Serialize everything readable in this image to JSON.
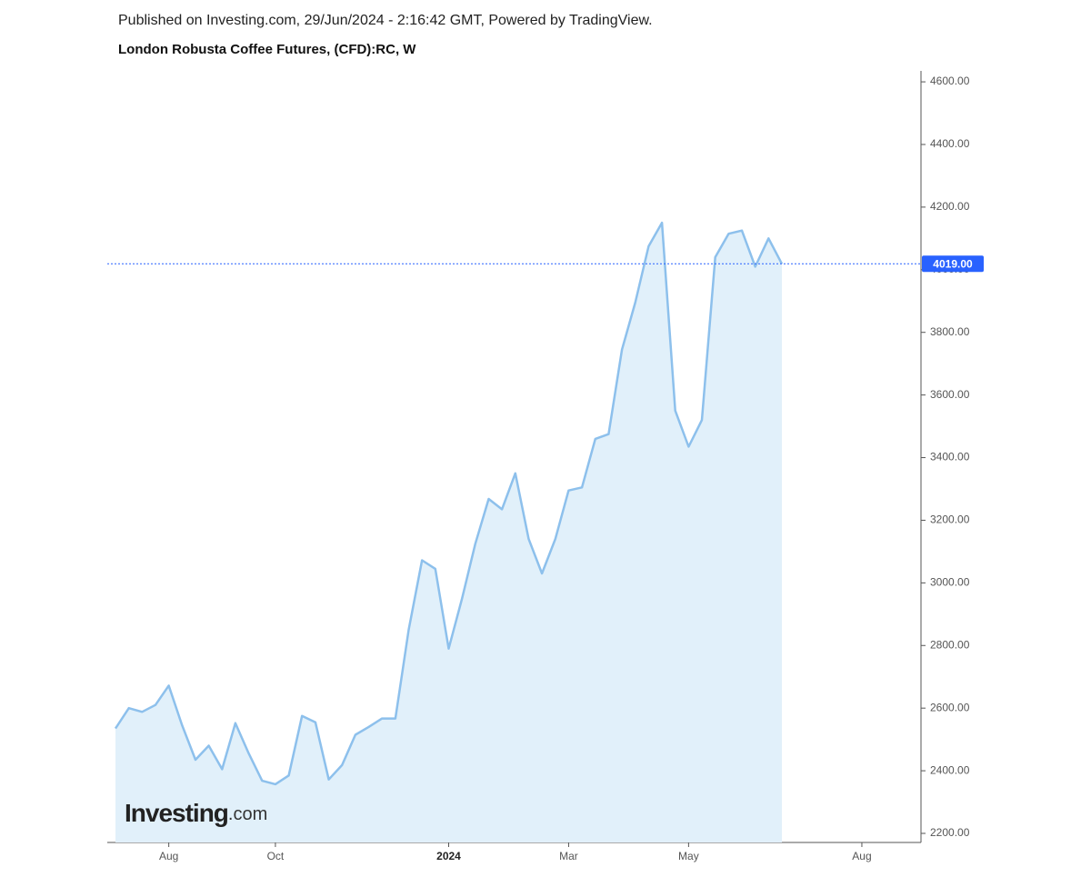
{
  "header": "Published on Investing.com, 29/Jun/2024 - 2:16:42 GMT, Powered by TradingView.",
  "chart_data": {
    "type": "area",
    "title": "London Robusta Coffee Futures, (CFD):RC, W",
    "categories": [
      null,
      null,
      null,
      null,
      "Aug",
      null,
      null,
      null,
      null,
      null,
      null,
      null,
      "Oct",
      null,
      null,
      null,
      null,
      null,
      null,
      null,
      null,
      null,
      null,
      null,
      null,
      "2024",
      null,
      null,
      null,
      null,
      null,
      null,
      null,
      null,
      "Mar",
      null,
      null,
      null,
      null,
      null,
      null,
      null,
      null,
      "May",
      null,
      null,
      null,
      null,
      null,
      null,
      null,
      null,
      null,
      null,
      null,
      null,
      "Aug",
      null,
      null,
      null,
      null
    ],
    "values": [
      2535,
      2600,
      2588,
      2610,
      2672,
      2545,
      2435,
      2480,
      2405,
      2552,
      2455,
      2368,
      2357,
      2385,
      2575,
      2555,
      2372,
      2418,
      2515,
      2540,
      2567,
      2567,
      2850,
      3072,
      3045,
      2790,
      2950,
      3125,
      3268,
      3235,
      3350,
      3140,
      3030,
      3140,
      3295,
      3305,
      3460,
      3475,
      3745,
      3895,
      4075,
      4150,
      3550,
      3435,
      3520,
      4040,
      4115,
      4125,
      4010,
      4100,
      4019,
      null,
      null,
      null,
      null,
      null,
      null,
      null,
      null,
      null,
      null
    ],
    "color": "#8dc0ec",
    "fill": "#e1f0fa",
    "ylim": [
      2171,
      4635
    ],
    "yticks": [
      {
        "value": 2200,
        "label": "2200.00"
      },
      {
        "value": 2400,
        "label": "2400.00"
      },
      {
        "value": 2600,
        "label": "2600.00"
      },
      {
        "value": 2800,
        "label": "2800.00"
      },
      {
        "value": 3000,
        "label": "3000.00"
      },
      {
        "value": 3200,
        "label": "3200.00"
      },
      {
        "value": 3400,
        "label": "3400.00"
      },
      {
        "value": 3600,
        "label": "3600.00"
      },
      {
        "value": 3800,
        "label": "3800.00"
      },
      {
        "value": 4000,
        "label": "4000.00"
      },
      {
        "value": 4200,
        "label": "4200.00"
      },
      {
        "value": 4400,
        "label": "4400.00"
      },
      {
        "value": 4600,
        "label": "4600.00"
      }
    ],
    "price_line": {
      "value": 4019,
      "label": "4019.00",
      "color": "#2962ff"
    },
    "watermark": {
      "main": "Investing",
      "suffix": ".com"
    }
  }
}
